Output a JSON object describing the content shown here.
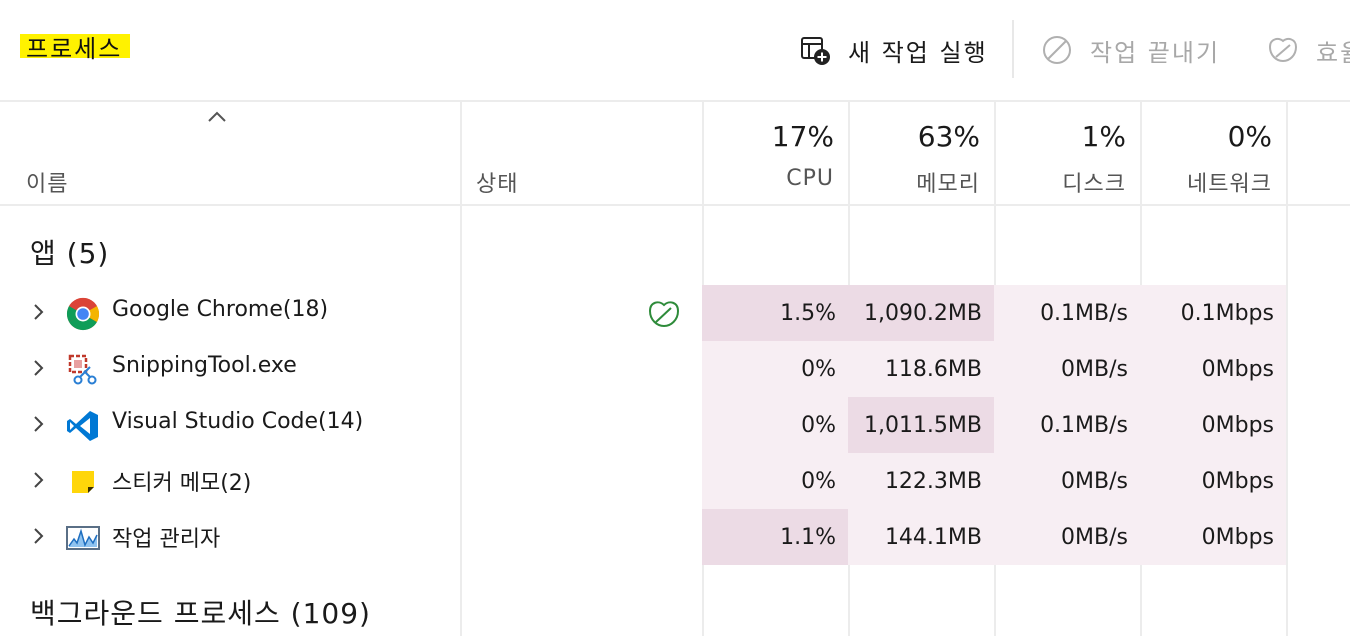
{
  "header": {
    "title": "프로세스",
    "new_task_label": "새 작업 실행",
    "end_task_label": "작업 끝내기",
    "efficiency_label": "효율"
  },
  "columns": {
    "name": "이름",
    "status": "상태",
    "cpu": {
      "percent": "17%",
      "label": "CPU"
    },
    "memory": {
      "percent": "63%",
      "label": "메모리"
    },
    "disk": {
      "percent": "1%",
      "label": "디스크"
    },
    "network": {
      "percent": "0%",
      "label": "네트워크"
    }
  },
  "groups": {
    "apps_title": "앱 (5)",
    "background_title": "백그라운드 프로세스 (109)"
  },
  "apps": [
    {
      "name": "Google Chrome(18)",
      "icon": "chrome-icon",
      "status_icon": "efficiency-leaf-icon",
      "cpu": "1.5%",
      "memory": "1,090.2MB",
      "disk": "0.1MB/s",
      "network": "0.1Mbps"
    },
    {
      "name": "SnippingTool.exe",
      "icon": "snipping-tool-icon",
      "cpu": "0%",
      "memory": "118.6MB",
      "disk": "0MB/s",
      "network": "0Mbps"
    },
    {
      "name": "Visual Studio Code(14)",
      "icon": "vscode-icon",
      "cpu": "0%",
      "memory": "1,011.5MB",
      "disk": "0.1MB/s",
      "network": "0Mbps"
    },
    {
      "name": "스티커 메모(2)",
      "icon": "sticky-notes-icon",
      "cpu": "0%",
      "memory": "122.3MB",
      "disk": "0MB/s",
      "network": "0Mbps"
    },
    {
      "name": "작업 관리자",
      "icon": "task-manager-icon",
      "cpu": "1.1%",
      "memory": "144.1MB",
      "disk": "0MB/s",
      "network": "0Mbps"
    }
  ],
  "colors": {
    "heat_light": "#f7eef3",
    "heat_medium": "#ecdbe5",
    "title_highlight": "#fff200",
    "leaf_green": "#2e8b3a"
  }
}
